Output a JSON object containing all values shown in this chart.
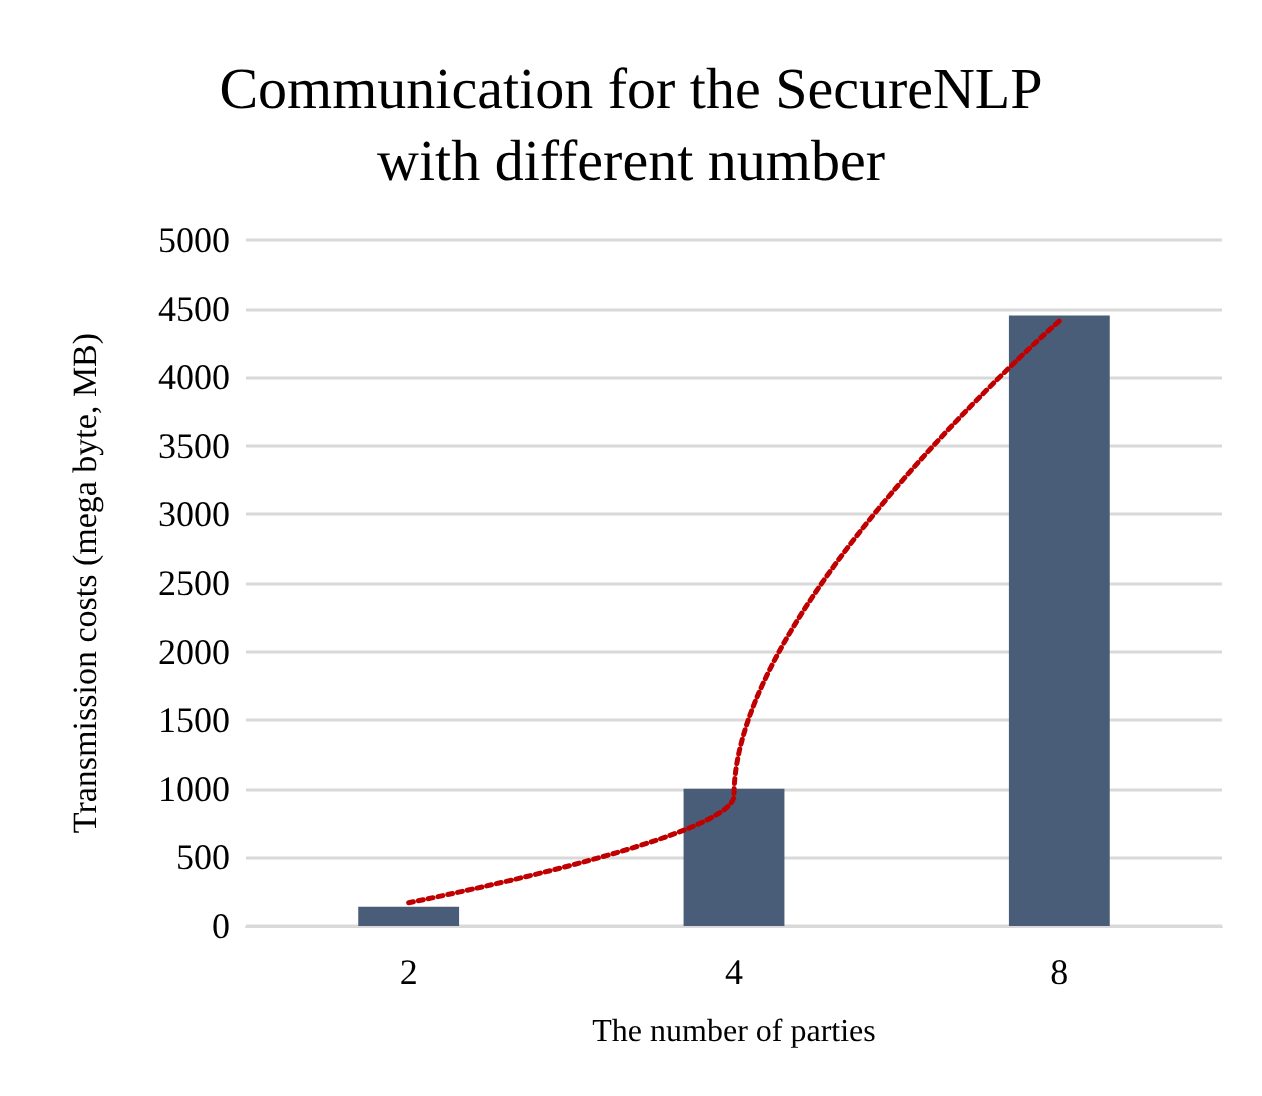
{
  "chart_data": {
    "type": "bar",
    "title": "Communication for the SecureNLP\nwith different number",
    "xlabel": "The number of parties",
    "ylabel": "Transmission costs (mega byte, MB)",
    "categories": [
      "2",
      "4",
      "8"
    ],
    "series": [
      {
        "color": "#4a5d78",
        "values": [
          140,
          1000,
          4450
        ]
      },
      {
        "type": "line",
        "x": [
          "2",
          "4",
          "8"
        ],
        "color": "#c00000",
        "values": [
          170,
          950,
          4410
        ],
        "line_style": "dotted",
        "marker": "none"
      }
    ],
    "ylim": [
      0,
      5000
    ],
    "yticks": [
      0,
      500,
      1000,
      1500,
      2000,
      2500,
      3000,
      3500,
      4000,
      4500,
      5000
    ],
    "grid": "y"
  }
}
